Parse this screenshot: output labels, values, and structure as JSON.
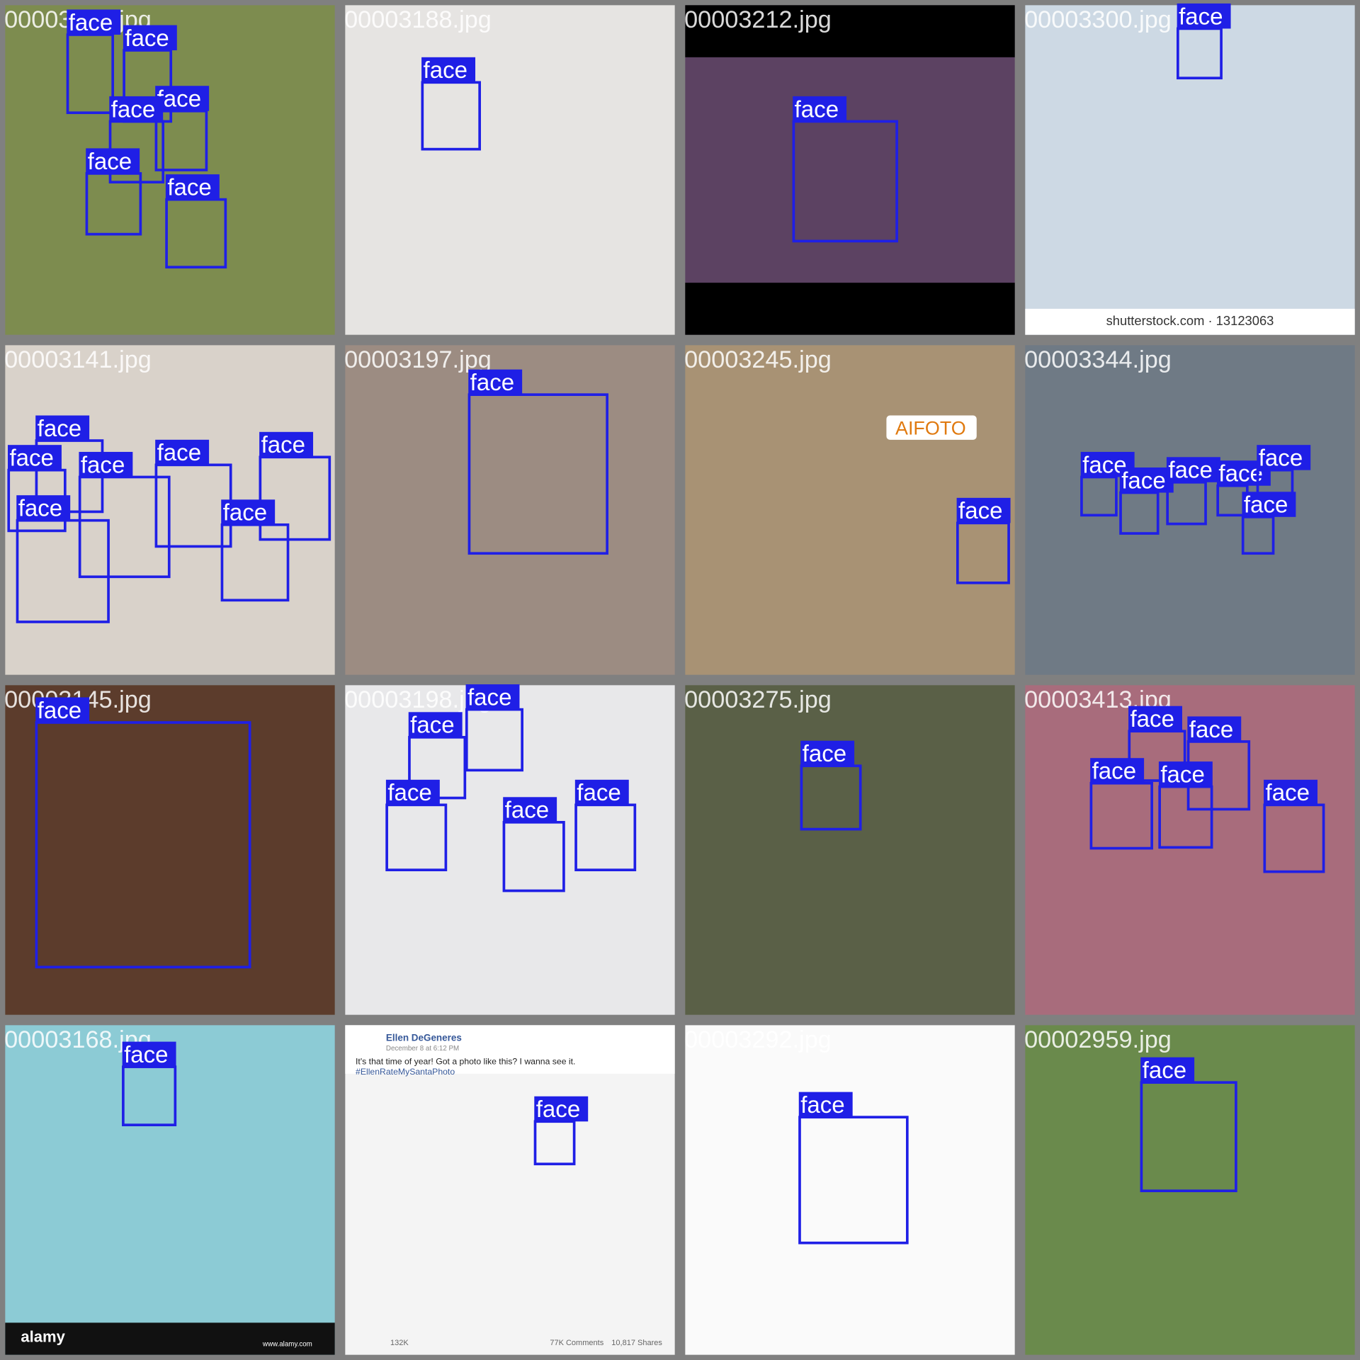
{
  "tiles": [
    {
      "filename": "00003024.jpg",
      "boxes": [
        "face",
        "face",
        "face",
        "face",
        "face",
        "face"
      ]
    },
    {
      "filename": "00003188.jpg",
      "boxes": [
        "face"
      ]
    },
    {
      "filename": "00003212.jpg",
      "boxes": [
        "face"
      ]
    },
    {
      "filename": "00003300.jpg",
      "boxes": [
        "face"
      ],
      "texts": [
        "shutterstock.com · 13123063"
      ]
    },
    {
      "filename": "00003141.jpg",
      "boxes": [
        "face",
        "face",
        "face",
        "face",
        "face",
        "face",
        "face"
      ]
    },
    {
      "filename": "00003197.jpg",
      "boxes": [
        "face"
      ]
    },
    {
      "filename": "00003245.jpg",
      "boxes": [
        "face"
      ],
      "texts": [
        "AIFOTO"
      ]
    },
    {
      "filename": "00003344.jpg",
      "boxes": [
        "face",
        "face",
        "face",
        "face",
        "face",
        "face"
      ]
    },
    {
      "filename": "00003145.jpg",
      "boxes": [
        "face"
      ]
    },
    {
      "filename": "00003198.jpg",
      "boxes": [
        "face",
        "face",
        "face",
        "face",
        "face"
      ]
    },
    {
      "filename": "00003275.jpg",
      "boxes": [
        "face"
      ]
    },
    {
      "filename": "00003413.jpg",
      "boxes": [
        "face",
        "face",
        "face",
        "face",
        "face"
      ]
    },
    {
      "filename": "00003168.jpg",
      "boxes": [
        "face"
      ],
      "texts": [
        "alamy",
        "www.alamy.com"
      ]
    },
    {
      "filename": "00003309.jpg",
      "boxes": [
        "face"
      ],
      "texts": [
        "Ellen DeGeneres",
        "December 8 at 6:12 PM",
        "It's that time of year! Got a photo like this? I wanna see it.",
        "#EllenRateMySantaPhoto",
        "132K",
        "77K Comments",
        "10,817 Shares"
      ]
    },
    {
      "filename": "00003292.jpg",
      "boxes": [
        "face"
      ]
    },
    {
      "filename": "00002959.jpg",
      "boxes": [
        "face"
      ]
    }
  ]
}
